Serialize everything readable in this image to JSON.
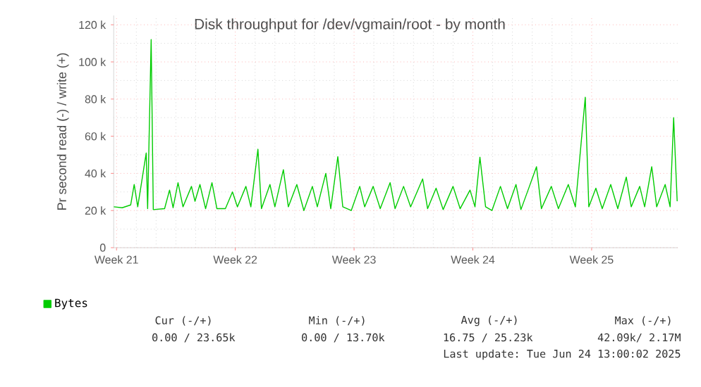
{
  "chart_data": {
    "type": "line",
    "title": "Disk throughput for /dev/vgmain/root - by month",
    "ylabel": "Pr second read (-) / write (+)",
    "x": [
      "2025-05-22T08:00",
      "2025-05-22T20:00",
      "2025-05-23T08:00",
      "2025-05-23T13:00",
      "2025-05-23T18:00",
      "2025-05-24T06:00",
      "2025-05-24T08:00",
      "2025-05-24T13:00",
      "2025-05-24T16:00",
      "2025-05-25T08:00",
      "2025-05-25T15:00",
      "2025-05-25T20:00",
      "2025-05-26T03:00",
      "2025-05-26T10:00",
      "2025-05-26T22:00",
      "2025-05-27T03:00",
      "2025-05-27T10:00",
      "2025-05-27T18:00",
      "2025-05-28T03:00",
      "2025-05-28T10:00",
      "2025-05-28T22:00",
      "2025-05-29T08:00",
      "2025-05-29T15:00",
      "2025-05-30T03:00",
      "2025-05-30T10:00",
      "2025-05-30T20:00",
      "2025-05-31T01:00",
      "2025-05-31T13:00",
      "2025-05-31T20:00",
      "2025-06-01T08:00",
      "2025-06-01T15:00",
      "2025-06-02T03:00",
      "2025-06-02T13:00",
      "2025-06-03T01:00",
      "2025-06-03T08:00",
      "2025-06-03T20:00",
      "2025-06-04T03:00",
      "2025-06-04T13:00",
      "2025-06-04T20:00",
      "2025-06-05T08:00",
      "2025-06-05T20:00",
      "2025-06-06T03:00",
      "2025-06-06T15:00",
      "2025-06-07T01:00",
      "2025-06-07T15:00",
      "2025-06-07T22:00",
      "2025-06-08T10:00",
      "2025-06-08T20:00",
      "2025-06-09T13:00",
      "2025-06-09T20:00",
      "2025-06-10T08:00",
      "2025-06-10T18:00",
      "2025-06-11T08:00",
      "2025-06-11T18:00",
      "2025-06-12T08:00",
      "2025-06-12T15:00",
      "2025-06-12T22:00",
      "2025-06-13T06:00",
      "2025-06-13T15:00",
      "2025-06-14T03:00",
      "2025-06-14T13:00",
      "2025-06-15T01:00",
      "2025-06-15T08:00",
      "2025-06-15T20:00",
      "2025-06-16T06:00",
      "2025-06-16T13:00",
      "2025-06-17T03:00",
      "2025-06-17T13:00",
      "2025-06-18T03:00",
      "2025-06-18T13:00",
      "2025-06-19T03:00",
      "2025-06-19T08:00",
      "2025-06-19T18:00",
      "2025-06-20T03:00",
      "2025-06-20T15:00",
      "2025-06-21T01:00",
      "2025-06-21T13:00",
      "2025-06-21T20:00",
      "2025-06-22T08:00",
      "2025-06-22T15:00",
      "2025-06-23T01:00",
      "2025-06-23T08:00",
      "2025-06-23T20:00",
      "2025-06-24T03:00",
      "2025-06-24T08:00",
      "2025-06-24T13:00"
    ],
    "series": [
      {
        "name": "Bytes",
        "color": "#00cc00",
        "values": [
          22000,
          21500,
          23000,
          34000,
          22000,
          51000,
          21000,
          112000,
          20500,
          21000,
          31000,
          21500,
          35000,
          22000,
          33000,
          25000,
          34000,
          21000,
          35000,
          21000,
          21000,
          30000,
          22000,
          33000,
          22000,
          53000,
          21000,
          34000,
          22000,
          42000,
          22000,
          34000,
          20000,
          33000,
          22000,
          40000,
          21000,
          49000,
          22000,
          20000,
          33000,
          22000,
          33000,
          21000,
          35000,
          21000,
          33000,
          22000,
          37000,
          21000,
          32000,
          20500,
          33000,
          21000,
          31000,
          22000,
          48700,
          22000,
          20000,
          33000,
          21000,
          34000,
          20500,
          33000,
          43600,
          21000,
          33000,
          21000,
          34000,
          22000,
          81000,
          22000,
          32000,
          21000,
          34000,
          21000,
          38000,
          22000,
          33000,
          22000,
          43600,
          22000,
          34000,
          22000,
          70000,
          25000
        ]
      }
    ],
    "xlim": [
      "2025-05-22T08:00",
      "2025-06-24T14:00"
    ],
    "xticks": [
      {
        "value": "2025-05-22T12:00",
        "label": "Week 21"
      },
      {
        "value": "2025-05-29T12:00",
        "label": "Week 22"
      },
      {
        "value": "2025-06-05T12:00",
        "label": "Week 23"
      },
      {
        "value": "2025-06-12T12:00",
        "label": "Week 24"
      },
      {
        "value": "2025-06-19T12:00",
        "label": "Week 25"
      }
    ],
    "ylim": [
      0,
      125000
    ],
    "yticks": [
      0,
      {
        "value": 20000,
        "label": "20 k"
      },
      {
        "value": 40000,
        "label": "40 k"
      },
      {
        "value": 60000,
        "label": "60 k"
      },
      {
        "value": 80000,
        "label": "80 k"
      },
      {
        "value": 100000,
        "label": "100 k"
      },
      {
        "value": 120000,
        "label": "120 k"
      }
    ],
    "grid": true,
    "legend": "bottom left",
    "marker": "none",
    "line_style": "solid",
    "annotations": [
      "Cur (-/+)",
      "Min (-/+)",
      "Avg (-/+)",
      "Max (-/+)",
      "0.00 / 23.65k",
      "0.00 / 13.70k",
      "16.75 / 25.23k",
      "42.09k/  2.17M",
      "Last update: Tue Jun 24 13:00:02 2025"
    ]
  }
}
